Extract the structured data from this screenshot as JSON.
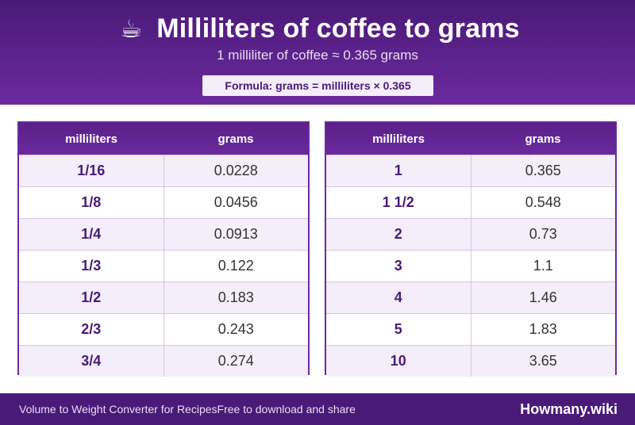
{
  "header": {
    "icon": "coffee-cup-icon",
    "icon_glyph": "☕",
    "title": "Milliliters of coffee to grams",
    "subtitle": "1 milliliter of coffee ≈ 0.365 grams",
    "formula": "Formula: grams = milliliters × 0.365"
  },
  "tables": [
    {
      "headers": [
        "milliliters",
        "grams"
      ],
      "rows": [
        {
          "ml": "1/16",
          "g": "0.0228"
        },
        {
          "ml": "1/8",
          "g": "0.0456"
        },
        {
          "ml": "1/4",
          "g": "0.0913"
        },
        {
          "ml": "1/3",
          "g": "0.122"
        },
        {
          "ml": "1/2",
          "g": "0.183"
        },
        {
          "ml": "2/3",
          "g": "0.243"
        },
        {
          "ml": "3/4",
          "g": "0.274"
        }
      ]
    },
    {
      "headers": [
        "milliliters",
        "grams"
      ],
      "rows": [
        {
          "ml": "1",
          "g": "0.365"
        },
        {
          "ml": "1 1/2",
          "g": "0.548"
        },
        {
          "ml": "2",
          "g": "0.73"
        },
        {
          "ml": "3",
          "g": "1.1"
        },
        {
          "ml": "4",
          "g": "1.46"
        },
        {
          "ml": "5",
          "g": "1.83"
        },
        {
          "ml": "10",
          "g": "3.65"
        }
      ]
    }
  ],
  "footer": {
    "left_text": "Volume to Weight Converter for RecipesFree to download and share",
    "brand": "Howmany.wiki"
  },
  "colors": {
    "primary": "#4a1a78",
    "accent": "#6b2a9e",
    "row_alt": "#f3eefa"
  }
}
